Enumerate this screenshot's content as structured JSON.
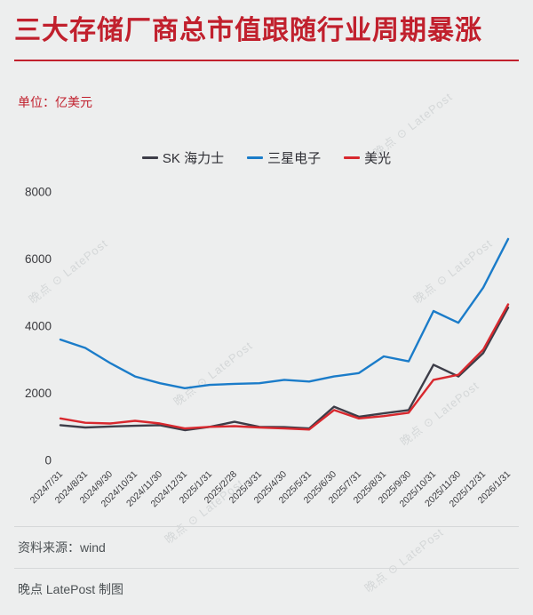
{
  "page": {
    "title": "三大存储厂商总市值跟随行业周期暴涨",
    "unit_label": "单位：亿美元",
    "source": "资料来源：wind",
    "credit": "晚点 LatePost 制图",
    "watermark": "晚点 ⊙ LatePost"
  },
  "colors": {
    "title_red": "#c1202d",
    "background": "#edeeee",
    "sk_hynix": "#3d3d48",
    "samsung": "#1b7cc9",
    "micron": "#d8282e"
  },
  "chart_data": {
    "type": "line",
    "title": "三大存储厂商总市值跟随行业周期暴涨",
    "xlabel": "",
    "ylabel": "亿美元",
    "ylim": [
      0,
      8000
    ],
    "yticks": [
      0,
      2000,
      4000,
      6000,
      8000
    ],
    "grid": false,
    "legend_position": "top",
    "categories": [
      "2024/7/31",
      "2024/8/31",
      "2024/9/30",
      "2024/10/31",
      "2024/11/30",
      "2024/12/31",
      "2025/1/31",
      "2025/2/28",
      "2025/3/31",
      "2025/4/30",
      "2025/5/31",
      "2025/6/30",
      "2025/7/31",
      "2025/8/31",
      "2025/9/30",
      "2025/10/31",
      "2025/11/30",
      "2025/12/31",
      "2026/1/31"
    ],
    "series": [
      {
        "name": "SK 海力士",
        "color": "#3d3d48",
        "values": [
          1050,
          980,
          1010,
          1030,
          1050,
          900,
          1000,
          1150,
          1000,
          990,
          950,
          1600,
          1300,
          1400,
          1500,
          2850,
          2500,
          3200,
          4550
        ]
      },
      {
        "name": "三星电子",
        "color": "#1b7cc9",
        "values": [
          3600,
          3350,
          2900,
          2500,
          2300,
          2150,
          2250,
          2280,
          2300,
          2400,
          2350,
          2500,
          2600,
          3100,
          2950,
          4450,
          4100,
          5150,
          6600
        ]
      },
      {
        "name": "美光",
        "color": "#d8282e",
        "values": [
          1250,
          1120,
          1100,
          1180,
          1100,
          950,
          1000,
          1020,
          980,
          950,
          920,
          1500,
          1250,
          1320,
          1420,
          2400,
          2550,
          3300,
          4650
        ]
      }
    ]
  }
}
